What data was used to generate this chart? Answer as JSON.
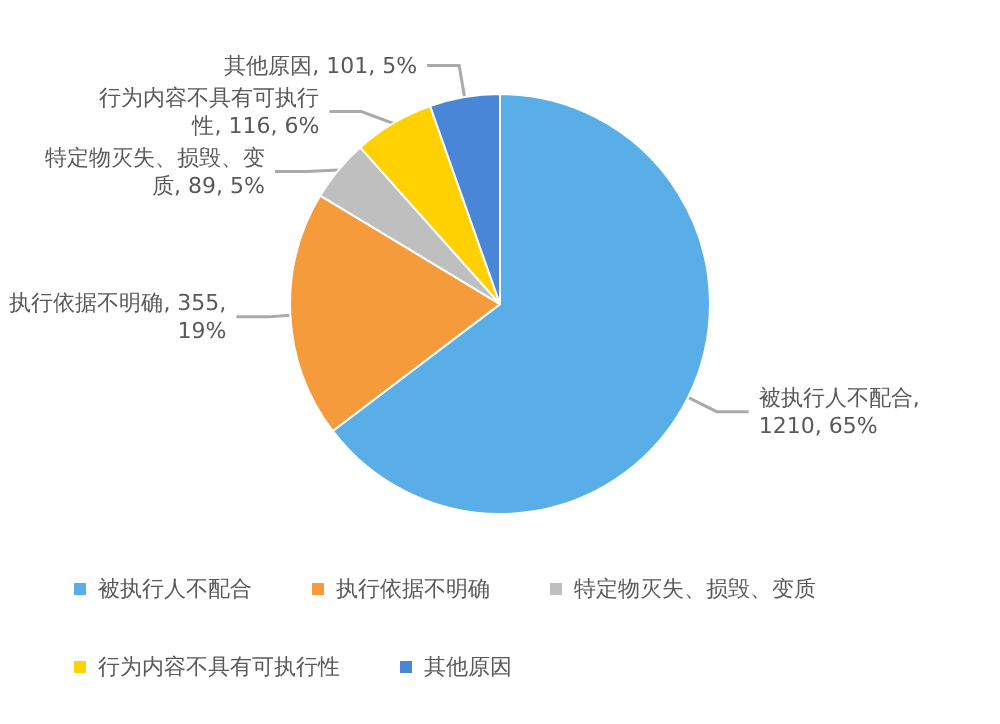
{
  "chart_data": {
    "type": "pie",
    "categories": [
      "被执行人不配合",
      "执行依据不明确",
      "特定物灭失、损毁、变质",
      "行为内容不具有可执行性",
      "其他原因"
    ],
    "values": [
      1210,
      355,
      89,
      116,
      101
    ],
    "value_labels": [
      "被执行人不配合, 1210, 65%",
      "执行依据不明确, 355, 19%",
      "特定物灭失、损毁、变质, 89, 5%",
      "行为内容不具有可执行性, 116, 6%",
      "其他原因, 101, 5%"
    ],
    "colors": [
      "#5aaee8",
      "#f59b3b",
      "#bfbfbf",
      "#ffd100",
      "#4a86d8"
    ],
    "legend": "bottom"
  }
}
